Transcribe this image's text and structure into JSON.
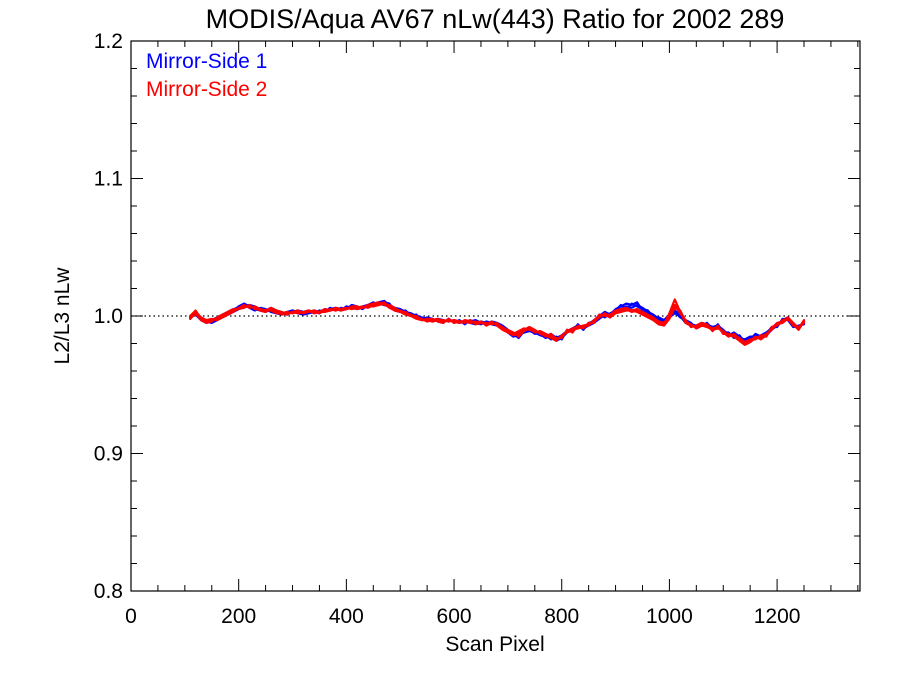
{
  "colors": {
    "axis": "#000000",
    "background": "#ffffff",
    "mirror_side_1": "#0000ff",
    "mirror_side_2": "#ff0000"
  },
  "chart_data": {
    "type": "line",
    "title": "MODIS/Aqua AV67 nLw(443) Ratio for 2002 289",
    "xlabel": "Scan Pixel",
    "ylabel": "L2/L3 nLw",
    "xlim": [
      0,
      1354
    ],
    "ylim": [
      0.8,
      1.2
    ],
    "xticks": [
      0,
      200,
      400,
      600,
      800,
      1000,
      1200
    ],
    "yticks": [
      0.8,
      0.9,
      1.0,
      1.1,
      1.2
    ],
    "xtick_labels": [
      "0",
      "200",
      "400",
      "600",
      "800",
      "1000",
      "1200"
    ],
    "ytick_labels": [
      "0.8",
      "0.9",
      "1.0",
      "1.1",
      "1.2"
    ],
    "x_minor_step": 50,
    "y_minor_step": 0.02,
    "reference_line": {
      "y": 1.0,
      "style": "dotted"
    },
    "legend_placement": "top-left",
    "grid": false,
    "x": [
      110,
      120,
      130,
      140,
      150,
      160,
      170,
      180,
      190,
      200,
      210,
      220,
      230,
      240,
      250,
      260,
      270,
      280,
      290,
      300,
      310,
      320,
      330,
      340,
      350,
      360,
      370,
      380,
      390,
      400,
      410,
      420,
      430,
      440,
      450,
      460,
      470,
      480,
      490,
      500,
      510,
      520,
      530,
      540,
      550,
      560,
      570,
      580,
      590,
      600,
      610,
      620,
      630,
      640,
      650,
      660,
      670,
      680,
      690,
      700,
      710,
      720,
      730,
      740,
      750,
      760,
      770,
      780,
      790,
      800,
      810,
      820,
      830,
      840,
      850,
      860,
      870,
      880,
      890,
      900,
      910,
      920,
      930,
      940,
      950,
      960,
      970,
      980,
      990,
      1000,
      1010,
      1020,
      1030,
      1040,
      1050,
      1060,
      1070,
      1080,
      1090,
      1100,
      1110,
      1120,
      1130,
      1140,
      1150,
      1160,
      1170,
      1180,
      1190,
      1200,
      1210,
      1220,
      1230,
      1240,
      1250
    ],
    "series": [
      {
        "name": "Mirror-Side 1",
        "color": "#0000ff",
        "lines": [
          [
            0.998,
            1.003,
            0.999,
            0.996,
            0.995,
            0.997,
            0.999,
            1.001,
            1.003,
            1.005,
            1.007,
            1.008,
            1.007,
            1.005,
            1.004,
            1.006,
            1.004,
            1.002,
            1.003,
            1.004,
            1.003,
            1.002,
            1.003,
            1.004,
            1.003,
            1.004,
            1.005,
            1.006,
            1.005,
            1.006,
            1.007,
            1.006,
            1.007,
            1.008,
            1.009,
            1.01,
            1.011,
            1.008,
            1.006,
            1.005,
            1.003,
            1.002,
            1.0,
            0.999,
            0.998,
            0.997,
            0.998,
            0.997,
            0.996,
            0.997,
            0.996,
            0.995,
            0.996,
            0.997,
            0.995,
            0.994,
            0.996,
            0.995,
            0.993,
            0.99,
            0.986,
            0.988,
            0.99,
            0.991,
            0.989,
            0.987,
            0.984,
            0.986,
            0.982,
            0.984,
            0.988,
            0.99,
            0.992,
            0.991,
            0.993,
            0.995,
            0.998,
            1.001,
            0.999,
            1.003,
            1.005,
            1.007,
            1.006,
            1.008,
            1.006,
            1.003,
            1.001,
            0.998,
            0.996,
            1.0,
            1.004,
            1.001,
            0.996,
            0.994,
            0.993,
            0.995,
            0.994,
            0.992,
            0.993,
            0.99,
            0.986,
            0.988,
            0.985,
            0.982,
            0.984,
            0.986,
            0.984,
            0.986,
            0.99,
            0.993,
            0.997,
            0.999,
            0.994,
            0.992,
            0.995
          ],
          [
            1.0,
            1.001,
            0.997,
            0.995,
            0.997,
            0.999,
            1.001,
            1.003,
            1.005,
            1.006,
            1.008,
            1.006,
            1.004,
            1.006,
            1.005,
            1.003,
            1.002,
            1.001,
            1.002,
            1.004,
            1.002,
            1.001,
            1.002,
            1.003,
            1.002,
            1.005,
            1.004,
            1.005,
            1.004,
            1.007,
            1.006,
            1.005,
            1.006,
            1.007,
            1.008,
            1.009,
            1.008,
            1.007,
            1.005,
            1.004,
            1.002,
            1.001,
            0.999,
            0.998,
            0.997,
            0.996,
            0.997,
            0.996,
            0.997,
            0.996,
            0.995,
            0.996,
            0.995,
            0.994,
            0.996,
            0.995,
            0.994,
            0.993,
            0.991,
            0.988,
            0.985,
            0.986,
            0.988,
            0.989,
            0.988,
            0.986,
            0.985,
            0.987,
            0.984,
            0.986,
            0.989,
            0.991,
            0.993,
            0.992,
            0.994,
            0.997,
            1.0,
            1.003,
            1.001,
            1.005,
            1.007,
            1.009,
            1.008,
            1.01,
            1.004,
            1.002,
            1.0,
            0.997,
            0.995,
            0.999,
            1.002,
            1.0,
            0.995,
            0.993,
            0.992,
            0.994,
            0.993,
            0.991,
            0.992,
            0.989,
            0.987,
            0.986,
            0.984,
            0.983,
            0.985,
            0.985,
            0.986,
            0.988,
            0.991,
            0.994,
            0.996,
            0.998,
            0.993,
            0.991,
            0.996
          ],
          [
            0.999,
            1.002,
            0.998,
            0.997,
            0.996,
            0.998,
            1.0,
            1.002,
            1.004,
            1.007,
            1.009,
            1.007,
            1.005,
            1.004,
            1.003,
            1.005,
            1.003,
            1.002,
            1.001,
            1.003,
            1.004,
            1.003,
            1.004,
            1.002,
            1.004,
            1.003,
            1.006,
            1.004,
            1.006,
            1.005,
            1.008,
            1.007,
            1.005,
            1.008,
            1.01,
            1.008,
            1.01,
            1.009,
            1.004,
            1.003,
            1.004,
            1.0,
            1.001,
            0.997,
            0.999,
            0.998,
            0.996,
            0.995,
            0.998,
            0.995,
            0.997,
            0.994,
            0.997,
            0.995,
            0.994,
            0.996,
            0.995,
            0.994,
            0.992,
            0.989,
            0.987,
            0.984,
            0.989,
            0.99,
            0.987,
            0.988,
            0.986,
            0.983,
            0.985,
            0.983,
            0.99,
            0.989,
            0.994,
            0.99,
            0.995,
            0.996,
            1.001,
            0.999,
            1.002,
            1.004,
            1.008,
            1.005,
            1.009,
            1.007,
            1.005,
            1.004,
            0.999,
            0.999,
            0.997,
            1.001,
            1.003,
            0.999,
            0.997,
            0.995,
            0.991,
            0.993,
            0.995,
            0.99,
            0.994,
            0.988,
            0.988,
            0.984,
            0.986,
            0.981,
            0.983,
            0.987,
            0.985,
            0.987,
            0.992,
            0.992,
            0.998,
            0.997,
            0.992,
            0.993,
            0.994
          ]
        ]
      },
      {
        "name": "Mirror-Side 2",
        "color": "#ff0000",
        "lines": [
          [
            1.0,
            1.004,
            0.998,
            0.996,
            0.997,
            0.998,
            1.0,
            1.002,
            1.004,
            1.006,
            1.007,
            1.007,
            1.006,
            1.004,
            1.003,
            1.005,
            1.003,
            1.001,
            1.002,
            1.003,
            1.002,
            1.003,
            1.004,
            1.003,
            1.002,
            1.004,
            1.005,
            1.004,
            1.005,
            1.006,
            1.005,
            1.006,
            1.007,
            1.006,
            1.008,
            1.009,
            1.01,
            1.007,
            1.005,
            1.004,
            1.002,
            1.001,
            0.999,
            0.998,
            0.996,
            0.997,
            0.998,
            0.996,
            0.997,
            0.996,
            0.995,
            0.997,
            0.996,
            0.995,
            0.996,
            0.993,
            0.995,
            0.994,
            0.992,
            0.989,
            0.987,
            0.989,
            0.991,
            0.99,
            0.989,
            0.988,
            0.985,
            0.987,
            0.983,
            0.985,
            0.989,
            0.991,
            0.992,
            0.993,
            0.994,
            0.996,
            0.999,
            1.002,
            1.0,
            1.003,
            1.004,
            1.005,
            1.003,
            1.004,
            1.002,
            1.0,
            0.998,
            0.995,
            0.994,
            1.002,
            1.012,
            1.003,
            0.995,
            0.993,
            0.992,
            0.994,
            0.993,
            0.991,
            0.992,
            0.988,
            0.985,
            0.987,
            0.983,
            0.98,
            0.982,
            0.985,
            0.983,
            0.986,
            0.991,
            0.995,
            0.996,
            0.999,
            0.995,
            0.991,
            0.997
          ],
          [
            0.998,
            1.002,
            0.997,
            0.995,
            0.996,
            0.999,
            1.001,
            1.003,
            1.005,
            1.005,
            1.006,
            1.008,
            1.005,
            1.005,
            1.004,
            1.004,
            1.002,
            1.002,
            1.003,
            1.002,
            1.003,
            1.002,
            1.003,
            1.004,
            1.003,
            1.003,
            1.004,
            1.005,
            1.004,
            1.005,
            1.006,
            1.005,
            1.006,
            1.007,
            1.007,
            1.008,
            1.009,
            1.006,
            1.004,
            1.003,
            1.001,
            1.0,
            0.998,
            0.997,
            0.997,
            0.996,
            0.997,
            0.997,
            0.996,
            0.997,
            0.996,
            0.996,
            0.995,
            0.996,
            0.995,
            0.994,
            0.996,
            0.993,
            0.99,
            0.988,
            0.986,
            0.987,
            0.99,
            0.992,
            0.99,
            0.987,
            0.986,
            0.984,
            0.982,
            0.986,
            0.988,
            0.99,
            0.991,
            0.992,
            0.993,
            0.997,
            1.0,
            1.001,
            0.999,
            1.002,
            1.003,
            1.004,
            1.004,
            1.003,
            1.001,
            0.999,
            0.997,
            0.994,
            0.993,
            0.998,
            1.006,
            1.004,
            0.996,
            0.994,
            0.991,
            0.993,
            0.992,
            0.99,
            0.991,
            0.989,
            0.986,
            0.985,
            0.982,
            0.979,
            0.981,
            0.984,
            0.985,
            0.987,
            0.99,
            0.994,
            0.995,
            0.998,
            0.994,
            0.99,
            0.996
          ],
          [
            0.999,
            1.003,
            0.999,
            0.997,
            0.998,
            0.997,
            0.999,
            1.001,
            1.003,
            1.006,
            1.008,
            1.006,
            1.007,
            1.005,
            1.004,
            1.006,
            1.004,
            1.003,
            1.001,
            1.003,
            1.004,
            1.002,
            1.004,
            1.002,
            1.003,
            1.005,
            1.004,
            1.006,
            1.005,
            1.005,
            1.007,
            1.007,
            1.006,
            1.008,
            1.009,
            1.01,
            1.008,
            1.008,
            1.006,
            1.003,
            1.003,
            1.0,
            1.0,
            0.997,
            0.998,
            0.998,
            0.996,
            0.995,
            0.998,
            0.995,
            0.996,
            0.995,
            0.997,
            0.994,
            0.995,
            0.995,
            0.994,
            0.995,
            0.991,
            0.99,
            0.988,
            0.985,
            0.989,
            0.991,
            0.988,
            0.989,
            0.987,
            0.985,
            0.984,
            0.984,
            0.99,
            0.988,
            0.993,
            0.991,
            0.995,
            0.995,
            1.001,
            1.0,
            1.001,
            1.004,
            1.005,
            1.006,
            1.004,
            1.005,
            1.003,
            1.001,
            0.999,
            0.996,
            0.995,
            1.0,
            1.008,
            1.002,
            0.997,
            0.992,
            0.993,
            0.995,
            0.994,
            0.989,
            0.993,
            0.987,
            0.987,
            0.986,
            0.984,
            0.981,
            0.983,
            0.983,
            0.986,
            0.985,
            0.992,
            0.993,
            0.997,
            0.998,
            0.993,
            0.992,
            0.995
          ]
        ]
      }
    ]
  }
}
